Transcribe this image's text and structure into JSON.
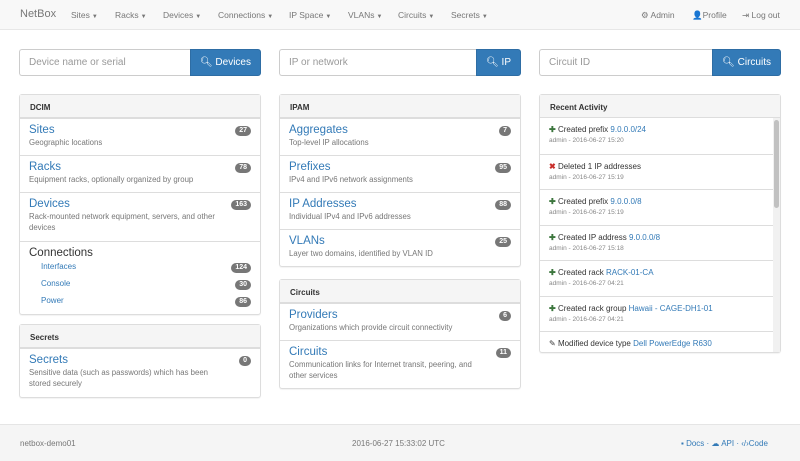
{
  "nav": {
    "brand": "NetBox",
    "menus": [
      "Sites",
      "Racks",
      "Devices",
      "Connections",
      "IP Space",
      "VLANs",
      "Circuits",
      "Secrets"
    ],
    "admin": "Admin",
    "profile": "Profile",
    "logout": "Log out"
  },
  "search": [
    {
      "placeholder": "Device name or serial",
      "button": "Devices"
    },
    {
      "placeholder": "IP or network",
      "button": "IP"
    },
    {
      "placeholder": "Circuit ID",
      "button": "Circuits"
    }
  ],
  "dcim": {
    "title": "DCIM",
    "items": [
      {
        "label": "Sites",
        "desc": "Geographic locations",
        "count": "27"
      },
      {
        "label": "Racks",
        "desc": "Equipment racks, optionally organized by group",
        "count": "78"
      },
      {
        "label": "Devices",
        "desc": "Rack-mounted network equipment, servers, and other devices",
        "count": "163"
      }
    ],
    "connections": {
      "label": "Connections",
      "items": [
        {
          "label": "Interfaces",
          "count": "124"
        },
        {
          "label": "Console",
          "count": "30"
        },
        {
          "label": "Power",
          "count": "86"
        }
      ]
    }
  },
  "secrets": {
    "title": "Secrets",
    "items": [
      {
        "label": "Secrets",
        "desc": "Sensitive data (such as passwords) which has been stored securely",
        "count": "0"
      }
    ]
  },
  "ipam": {
    "title": "IPAM",
    "items": [
      {
        "label": "Aggregates",
        "desc": "Top-level IP allocations",
        "count": "7"
      },
      {
        "label": "Prefixes",
        "desc": "IPv4 and IPv6 network assignments",
        "count": "95"
      },
      {
        "label": "IP Addresses",
        "desc": "Individual IPv4 and IPv6 addresses",
        "count": "88"
      },
      {
        "label": "VLANs",
        "desc": "Layer two domains, identified by VLAN ID",
        "count": "25"
      }
    ]
  },
  "circuits": {
    "title": "Circuits",
    "items": [
      {
        "label": "Providers",
        "desc": "Organizations which provide circuit connectivity",
        "count": "6"
      },
      {
        "label": "Circuits",
        "desc": "Communication links for Internet transit, peering, and other services",
        "count": "11"
      }
    ]
  },
  "activity": {
    "title": "Recent Activity",
    "items": [
      {
        "icon": "plus",
        "text": "Created prefix",
        "link": "9.0.0.0/24",
        "meta": "admin - 2016-06-27 15:20"
      },
      {
        "icon": "remove",
        "text": "Deleted 1 IP addresses",
        "link": "",
        "meta": "admin - 2016-06-27 15:19"
      },
      {
        "icon": "plus",
        "text": "Created prefix",
        "link": "9.0.0.0/8",
        "meta": "admin - 2016-06-27 15:19"
      },
      {
        "icon": "plus",
        "text": "Created IP address",
        "link": "9.0.0.0/8",
        "meta": "admin - 2016-06-27 15:18"
      },
      {
        "icon": "plus",
        "text": "Created rack",
        "link": "RACK-01-CA",
        "meta": "admin - 2016-06-27 04:21"
      },
      {
        "icon": "plus",
        "text": "Created rack group",
        "link": "Hawaii - CAGE-DH1-01",
        "meta": "admin - 2016-06-27 04:21"
      },
      {
        "icon": "pencil",
        "text": "Modified device type",
        "link": "Dell PowerEdge R630",
        "meta": ""
      }
    ]
  },
  "footer": {
    "host": "netbox-demo01",
    "time": "2016-06-27 15:33:02 UTC",
    "docs": "Docs",
    "api": "API",
    "code": "Code"
  }
}
